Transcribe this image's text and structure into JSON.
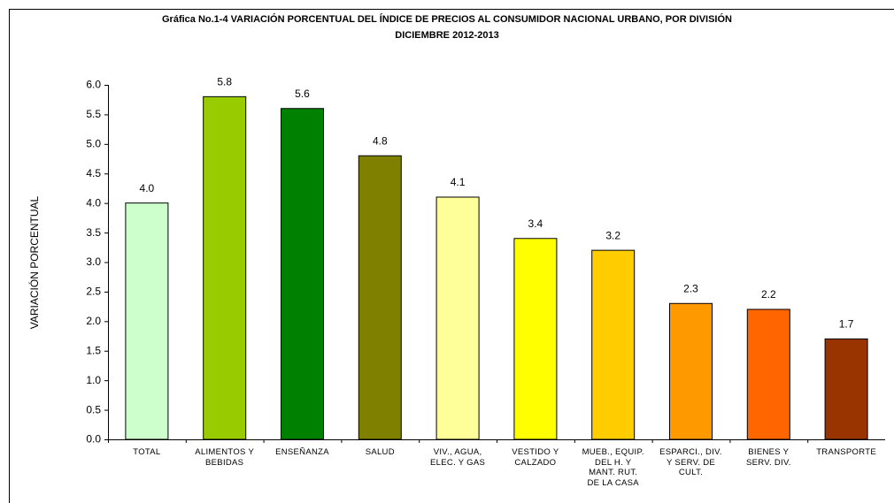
{
  "chart_data": {
    "type": "bar",
    "title": "Gráfica No.1-4 VARIACIÓN PORCENTUAL DEL ÍNDICE DE PRECIOS AL CONSUMIDOR NACIONAL URBANO, POR DIVISIÓN",
    "subtitle": "DICIEMBRE 2012-2013",
    "y_label": "VARIACIÓN PORCENTUAL",
    "categories": [
      "TOTAL",
      "ALIMENTOS Y\nBEBIDAS",
      "ENSEÑANZA",
      "SALUD",
      "VIV., AGUA,\nELEC. Y GAS",
      "VESTIDO Y\nCALZADO",
      "MUEB., EQUIP.\nDEL H. Y\nMANT. RUT.\nDE LA CASA",
      "ESPARCI., DIV.\nY SERV. DE\nCULT.",
      "BIENES Y\nSERV. DIV.",
      "TRANSPORTE"
    ],
    "values": [
      4.0,
      5.8,
      5.6,
      4.8,
      4.1,
      3.4,
      3.2,
      2.3,
      2.2,
      1.7
    ],
    "value_labels": [
      "4.0",
      "5.8",
      "5.6",
      "4.8",
      "4.1",
      "3.4",
      "3.2",
      "2.3",
      "2.2",
      "1.7"
    ],
    "colors": [
      "#ccffcc",
      "#99cc00",
      "#008000",
      "#808000",
      "#ffff99",
      "#ffff00",
      "#ffcc00",
      "#ff9900",
      "#ff6600",
      "#993300"
    ],
    "ylim": [
      0,
      6
    ],
    "yticks": [
      {
        "value": 0,
        "label": "0.0"
      },
      0.5,
      {
        "value": 1,
        "label": "1.0"
      },
      1.5,
      {
        "value": 2,
        "label": "2.0"
      },
      2.5,
      {
        "value": 3,
        "label": "3.0"
      },
      3.5,
      {
        "value": 4,
        "label": "4.0"
      },
      4.5,
      {
        "value": 5,
        "label": "5.0"
      },
      5.5,
      {
        "value": 6,
        "label": "6.0"
      }
    ],
    "grid": false
  }
}
